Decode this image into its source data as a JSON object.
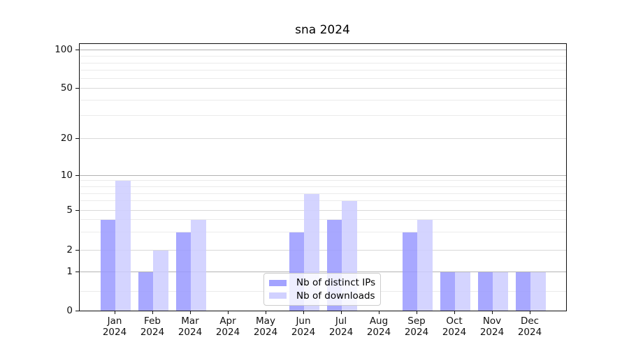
{
  "figure": {
    "background": "#ffffff"
  },
  "chart_data": {
    "type": "bar",
    "title": "sna 2024",
    "categories": [
      "Jan",
      "Feb",
      "Mar",
      "Apr",
      "May",
      "Jun",
      "Jul",
      "Aug",
      "Sep",
      "Oct",
      "Nov",
      "Dec"
    ],
    "category_year": "2024",
    "series": [
      {
        "name": "Nb of distinct IPs",
        "color": "#9999ff",
        "values": [
          4,
          1,
          3,
          0,
          0,
          3,
          4,
          0,
          3,
          1,
          1,
          1
        ]
      },
      {
        "name": "Nb of downloads",
        "color": "#ccccff",
        "values": [
          9,
          2,
          4,
          0,
          0,
          7,
          6,
          0,
          4,
          1,
          1,
          1
        ]
      }
    ],
    "yscale": "symlog",
    "ylim": [
      0,
      110
    ],
    "y_ticks": [
      100,
      50,
      20,
      10,
      5,
      2,
      1,
      0
    ],
    "grid": true,
    "legend_position": "lower center",
    "xlabel": "",
    "ylabel": ""
  },
  "legend": {
    "items": [
      {
        "label": "Nb of distinct IPs",
        "color": "#9999ff"
      },
      {
        "label": "Nb of downloads",
        "color": "#ccccff"
      }
    ]
  }
}
